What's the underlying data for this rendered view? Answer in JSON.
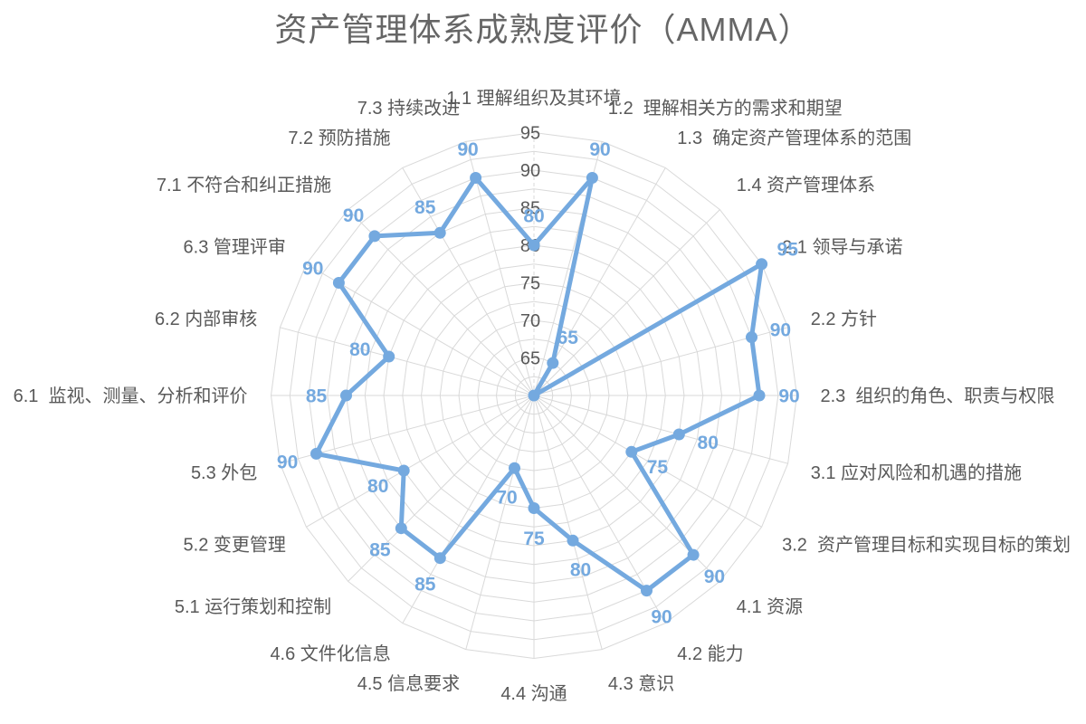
{
  "title": "资产管理体系成熟度评价（AMMA）",
  "chart_data": {
    "type": "radar",
    "title": "资产管理体系成熟度评价（AMMA）",
    "legend": "none",
    "grid": "on",
    "categories": [
      "1.1 理解组织及其环境",
      "1.2  理解相关方的需求和期望",
      "1.3  确定资产管理体系的范围",
      "1.4 资产管理体系",
      "2.1 领导与承诺",
      "2.2 方针",
      "2.3  组织的角色、职责与权限",
      "3.1 应对风险和机遇的措施",
      "3.2  资产管理目标和实现目标的策划",
      "4.1 资源",
      "4.2 能力",
      "4.3 意识",
      "4.4 沟通",
      "4.5 信息要求",
      "4.6 文件化信息",
      "5.1 运行策划和控制",
      "5.2 变更管理",
      "5.3 外包",
      "6.1  监视、测量、分析和评价",
      "6.2 内部审核",
      "6.3 管理评审",
      "7.1 不符合和纠正措施",
      "7.2 预防措施",
      "7.3 持续改进"
    ],
    "values": [
      80,
      90,
      65,
      60,
      95,
      90,
      90,
      80,
      75,
      90,
      90,
      80,
      75,
      70,
      85,
      85,
      80,
      90,
      85,
      80,
      90,
      90,
      85,
      90
    ],
    "axis": {
      "min": 60,
      "max": 95,
      "step": 5,
      "minor_step": 2.5,
      "ticks": [
        65,
        70,
        75,
        80,
        85,
        90,
        95
      ]
    },
    "colors": {
      "series": "#74a9df",
      "grid": "#d9d9d9",
      "axis_text": "#595959",
      "category_text": "#595959",
      "title": "#666666"
    }
  }
}
